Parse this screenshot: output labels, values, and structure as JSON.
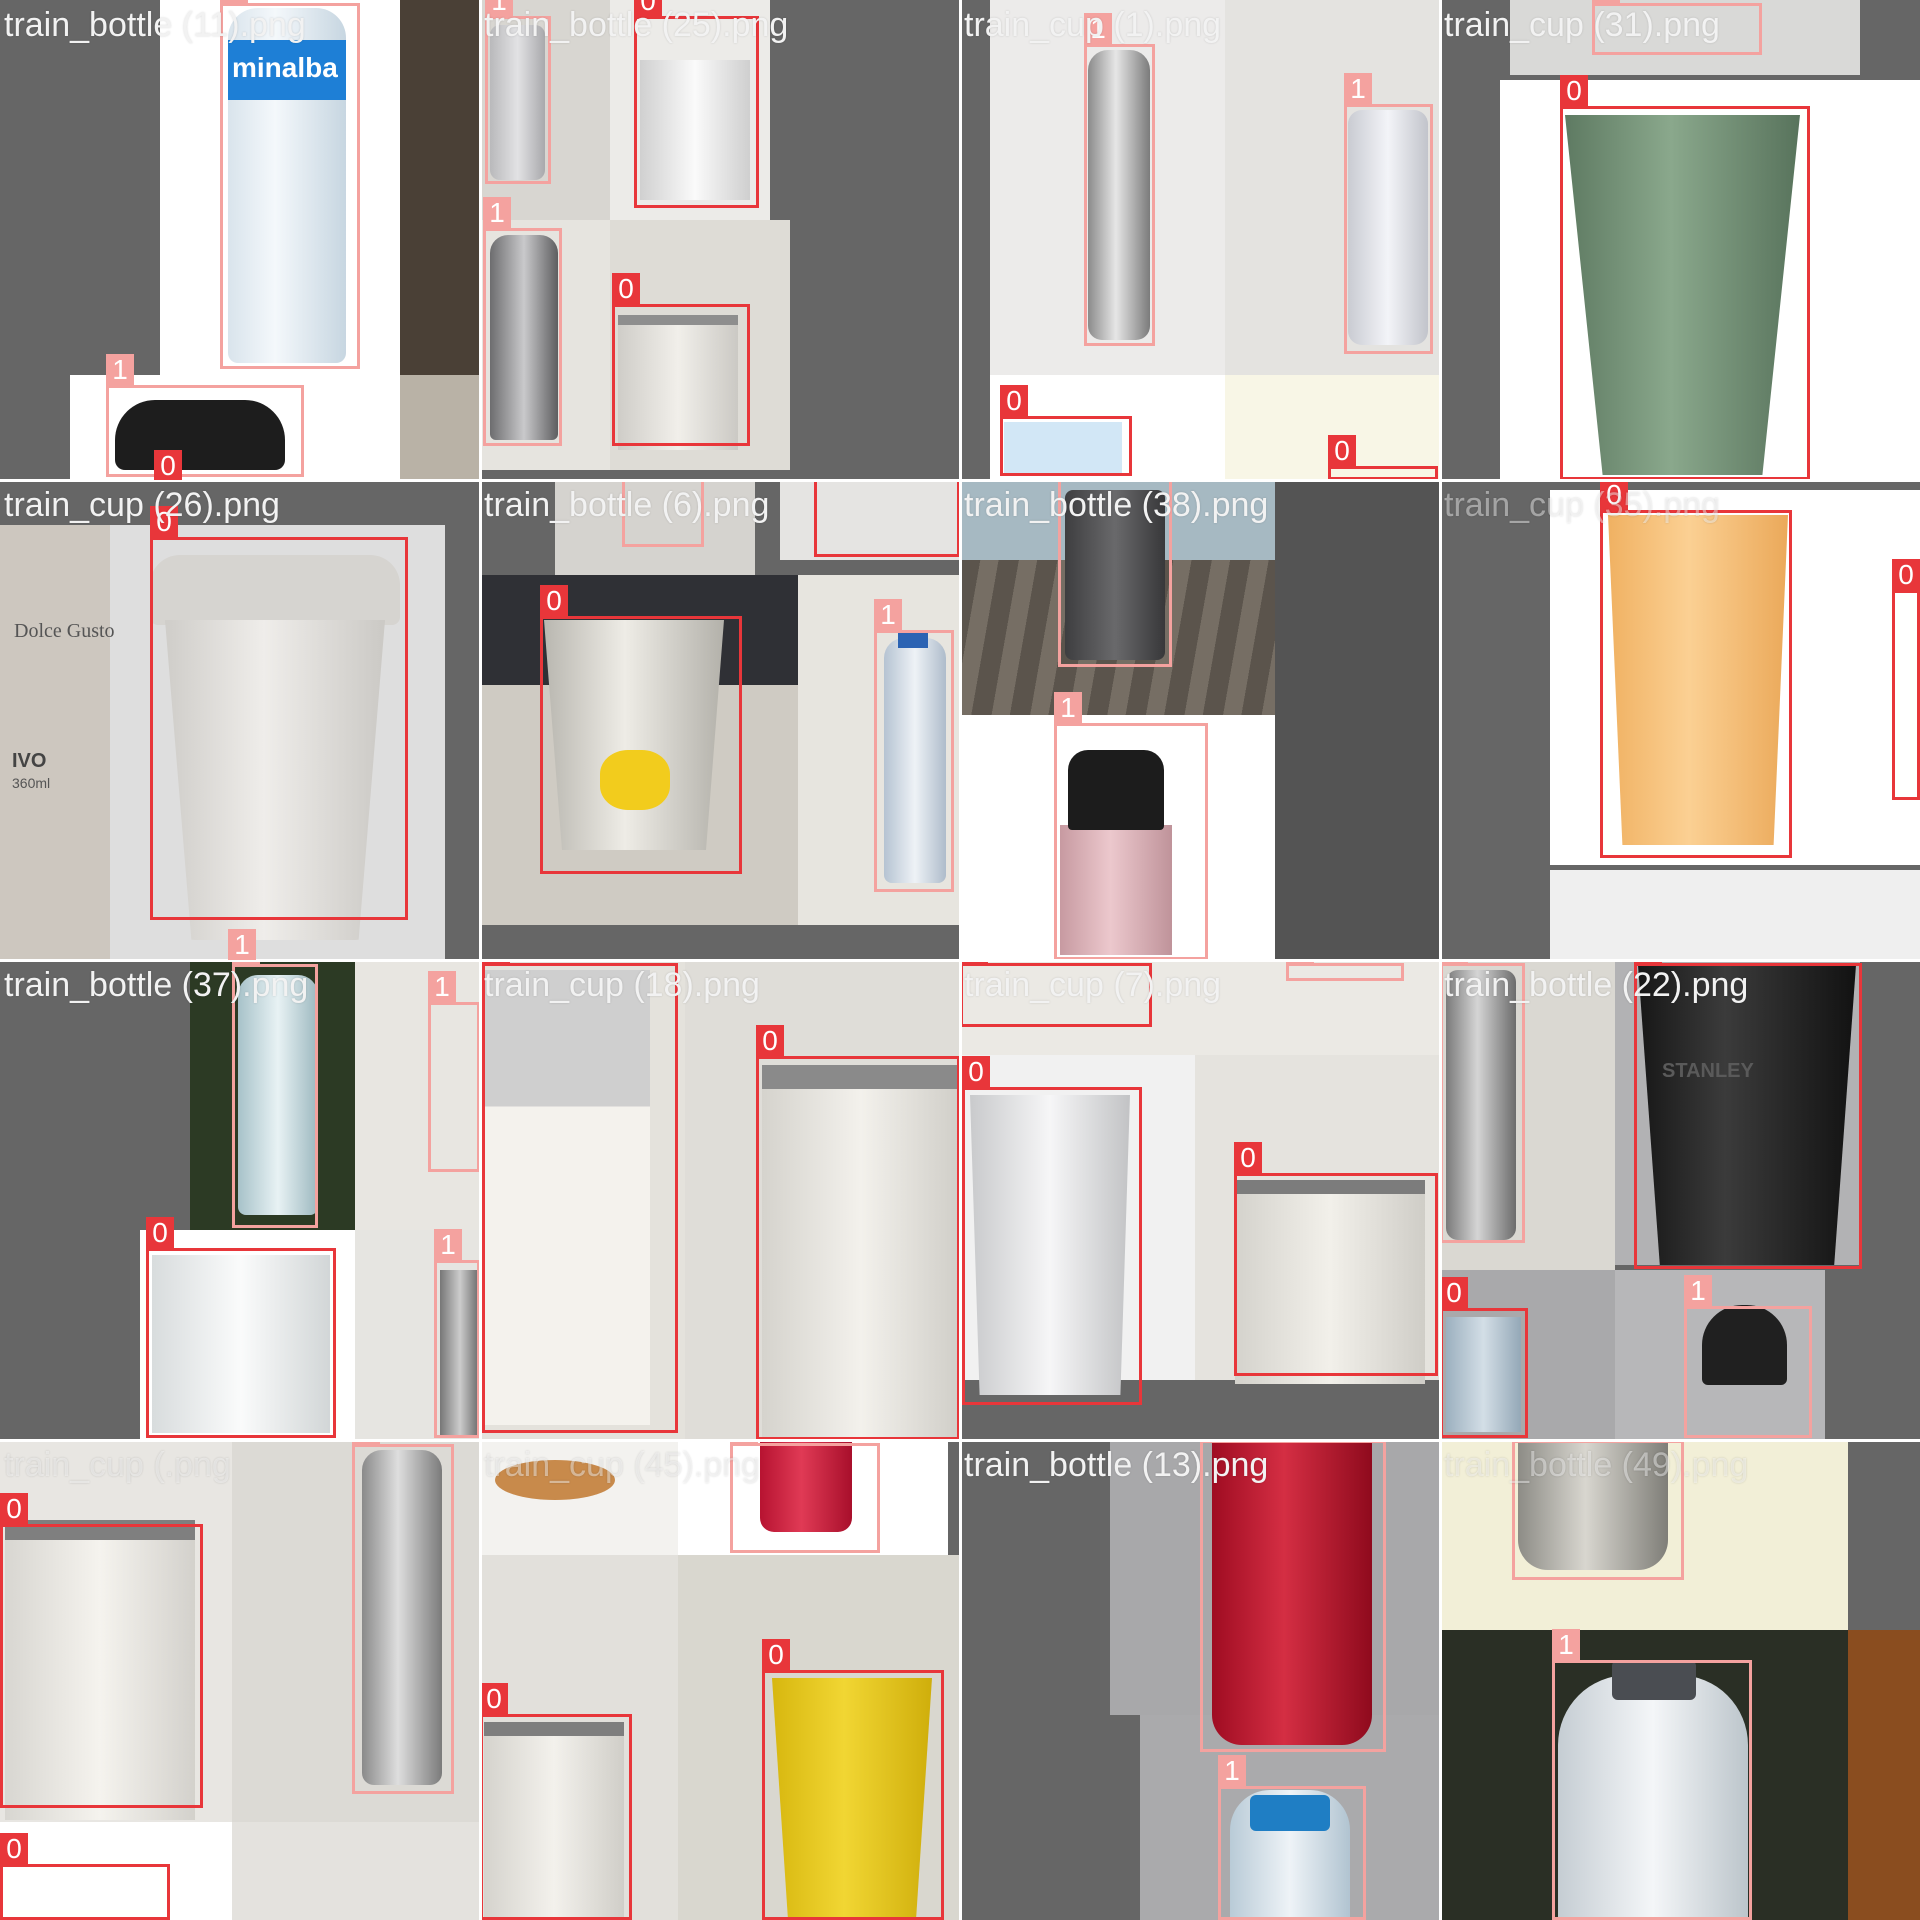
{
  "tiles": [
    {
      "title": "train_bottle (11).png",
      "faint": false
    },
    {
      "title": "train_bottle (25).png",
      "faint": false
    },
    {
      "title": "train_cup (1).png",
      "faint": false
    },
    {
      "title": "train_cup (31).png",
      "faint": false
    },
    {
      "title": "train_cup (26).png",
      "faint": false
    },
    {
      "title": "train_bottle (6).png",
      "faint": false
    },
    {
      "title": "train_bottle (38).png",
      "faint": false
    },
    {
      "title": "train_cup (35).png",
      "faint": true
    },
    {
      "title": "train_bottle (37).png",
      "faint": false
    },
    {
      "title": "train_cup (18).png",
      "faint": false
    },
    {
      "title": "train_cup (7).png",
      "faint": false
    },
    {
      "title": "train_bottle (22).png",
      "faint": false
    },
    {
      "title": "train_cup (.png",
      "faint": true
    },
    {
      "title": "train_cup (45).png",
      "faint": true
    },
    {
      "title": "train_bottle (13).png",
      "faint": false
    },
    {
      "title": "train_bottle (49).png",
      "faint": true
    }
  ],
  "class_labels": {
    "cup": "0",
    "bottle": "1"
  },
  "colors": {
    "cup_box": "#e8363a",
    "bottle_box": "#f4a29f",
    "pad_gray": "#666666"
  },
  "brand_text": {
    "minalba": "minalba",
    "stanley": "STANLEY",
    "nescafe": "Dolce Gusto",
    "ivo": "IVO",
    "ivo_ml": "360ml"
  }
}
